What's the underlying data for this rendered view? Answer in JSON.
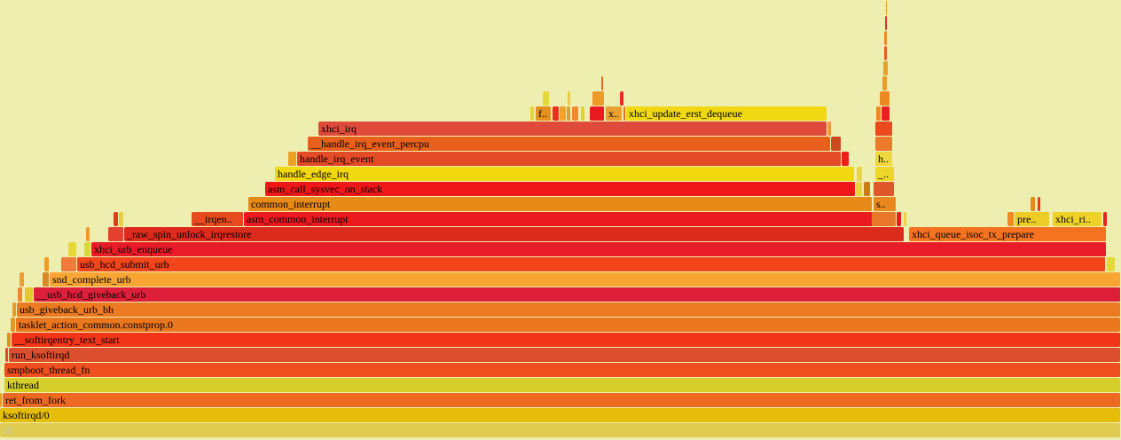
{
  "flamegraph": {
    "colors": {
      "background": "#eeeeb0",
      "all": "#e0cc50",
      "yellow": "#f0d90a",
      "orange": "#f07020",
      "red": "#e8281e"
    },
    "frames": [
      {
        "label": "all",
        "color": "#e0cc50",
        "depth": 0,
        "start": 0,
        "width": 1264,
        "dim": true
      },
      {
        "label": "ksoftirqd/0",
        "color": "#e5bd0a",
        "depth": 1,
        "start": 0,
        "width": 1264
      },
      {
        "label": "ret_from_fork",
        "color": "#ee6a22",
        "depth": 2,
        "start": 3,
        "width": 1261
      },
      {
        "label": "",
        "color": "#e89a1c",
        "depth": 2,
        "start": 0,
        "width": 3
      },
      {
        "label": "kthread",
        "color": "#d4cd2a",
        "depth": 3,
        "start": 5,
        "width": 1259
      },
      {
        "label": "smpboot_thread_fn",
        "color": "#f05020",
        "depth": 4,
        "start": 5,
        "width": 1259
      },
      {
        "label": "run_ksoftirqd",
        "color": "#dc4f2e",
        "depth": 5,
        "start": 10,
        "width": 1254
      },
      {
        "label": "",
        "color": "#e34a2a",
        "depth": 5,
        "start": 6,
        "width": 4
      },
      {
        "label": "__softirqentry_text_start",
        "color": "#f23418",
        "depth": 6,
        "start": 13,
        "width": 1251
      },
      {
        "label": "",
        "color": "#e38c24",
        "depth": 6,
        "start": 8,
        "width": 5
      },
      {
        "label": "tasklet_action_common.constprop.0",
        "color": "#ea761e",
        "depth": 7,
        "start": 18,
        "width": 1246
      },
      {
        "label": "",
        "color": "#e69628",
        "depth": 7,
        "start": 12,
        "width": 6
      },
      {
        "label": "usb_giveback_urb_bh",
        "color": "#ec7a22",
        "depth": 8,
        "start": 19,
        "width": 1245
      },
      {
        "label": "",
        "color": "#e79a30",
        "depth": 8,
        "start": 14,
        "width": 5
      },
      {
        "label": "__usb_hcd_giveback_urb",
        "color": "#de1f3a",
        "depth": 9,
        "start": 38,
        "width": 1226
      },
      {
        "label": "",
        "color": "#e3c830",
        "depth": 9,
        "start": 28,
        "width": 10
      },
      {
        "label": "",
        "color": "#ee8530",
        "depth": 9,
        "start": 20,
        "width": 6
      },
      {
        "label": "snd_complete_urb",
        "color": "#f8a534",
        "depth": 10,
        "start": 56,
        "width": 1208
      },
      {
        "label": "",
        "color": "#d88a28",
        "depth": 10,
        "start": 48,
        "width": 8
      },
      {
        "label": "",
        "color": "#ec9d34",
        "depth": 10,
        "start": 22,
        "width": 6
      },
      {
        "label": "usb_hcd_submit_urb",
        "color": "#f2451c",
        "depth": 11,
        "start": 87,
        "width": 1160
      },
      {
        "label": "",
        "color": "#ef7a3a",
        "depth": 11,
        "start": 69,
        "width": 18
      },
      {
        "label": "",
        "color": "#ee9a24",
        "depth": 11,
        "start": 50,
        "width": 6
      },
      {
        "label": "",
        "color": "#e6d838",
        "depth": 11,
        "start": 1248,
        "width": 10
      },
      {
        "label": "xhci_urb_enqueue",
        "color": "#e81c28",
        "depth": 12,
        "start": 103,
        "width": 1145
      },
      {
        "label": "",
        "color": "#d8d838",
        "depth": 12,
        "start": 95,
        "width": 8
      },
      {
        "label": "",
        "color": "#e6d838",
        "depth": 12,
        "start": 77,
        "width": 10
      },
      {
        "label": "_raw_spin_unlock_irqrestore",
        "color": "#dc2a1c",
        "depth": 13,
        "start": 140,
        "width": 880
      },
      {
        "label": "xhci_queue_isoc_tx_prepare",
        "color": "#f47220",
        "depth": 13,
        "start": 1025,
        "width": 223
      },
      {
        "label": "",
        "color": "#e3402e",
        "depth": 13,
        "start": 122,
        "width": 18
      },
      {
        "label": "",
        "color": "#f09a2a",
        "depth": 13,
        "start": 97,
        "width": 5
      },
      {
        "label": "asm_common_interrupt",
        "color": "#ea1a20",
        "depth": 14,
        "start": 275,
        "width": 710
      },
      {
        "label": "__irqen..",
        "color": "#e64a1e",
        "depth": 14,
        "start": 216,
        "width": 59
      },
      {
        "label": "",
        "color": "#e8772a",
        "depth": 14,
        "start": 983,
        "width": 28
      },
      {
        "label": "",
        "color": "#e81c1c",
        "depth": 14,
        "start": 1011,
        "width": 6
      },
      {
        "label": "",
        "color": "#eed040",
        "depth": 14,
        "start": 1019,
        "width": 4
      },
      {
        "label": "",
        "color": "#d8401e",
        "depth": 14,
        "start": 128,
        "width": 6
      },
      {
        "label": "",
        "color": "#e6d040",
        "depth": 14,
        "start": 134,
        "width": 6
      },
      {
        "label": "pre..",
        "color": "#eecc28",
        "depth": 14,
        "start": 1144,
        "width": 40
      },
      {
        "label": "",
        "color": "#ee8a1e",
        "depth": 14,
        "start": 1136,
        "width": 8
      },
      {
        "label": "xhci_ri..",
        "color": "#eed228",
        "depth": 14,
        "start": 1187,
        "width": 56
      },
      {
        "label": "",
        "color": "#e8241e",
        "depth": 14,
        "start": 1244,
        "width": 5
      },
      {
        "label": "common_interrupt",
        "color": "#e68a18",
        "depth": 15,
        "start": 280,
        "width": 704
      },
      {
        "label": "s..",
        "color": "#e8881e",
        "depth": 15,
        "start": 985,
        "width": 26
      },
      {
        "label": "",
        "color": "#e68a1e",
        "depth": 15,
        "start": 1162,
        "width": 6
      },
      {
        "label": "",
        "color": "#e03c1e",
        "depth": 15,
        "start": 1170,
        "width": 4
      },
      {
        "label": "asm_call_sysvec_on_stack",
        "color": "#ee1818",
        "depth": 16,
        "start": 299,
        "width": 666
      },
      {
        "label": "",
        "color": "#e6d83a",
        "depth": 16,
        "start": 965,
        "width": 8
      },
      {
        "label": "",
        "color": "#cc7a1a",
        "depth": 16,
        "start": 974,
        "width": 8
      },
      {
        "label": "",
        "color": "#e0582a",
        "depth": 16,
        "start": 985,
        "width": 24
      },
      {
        "label": "handle_edge_irq",
        "color": "#f2d80e",
        "depth": 17,
        "start": 310,
        "width": 654
      },
      {
        "label": "",
        "color": "#e6d83a",
        "depth": 17,
        "start": 966,
        "width": 7
      },
      {
        "label": "_..",
        "color": "#efd62a",
        "depth": 17,
        "start": 987,
        "width": 22
      },
      {
        "label": "handle_irq_event",
        "color": "#e44a26",
        "depth": 18,
        "start": 335,
        "width": 614
      },
      {
        "label": "",
        "color": "#eca024",
        "depth": 18,
        "start": 325,
        "width": 10
      },
      {
        "label": "",
        "color": "#ee2018",
        "depth": 18,
        "start": 949,
        "width": 9
      },
      {
        "label": "h..",
        "color": "#eed63e",
        "depth": 18,
        "start": 987,
        "width": 20
      },
      {
        "label": "__handle_irq_event_percpu",
        "color": "#e8601c",
        "depth": 19,
        "start": 347,
        "width": 590
      },
      {
        "label": "",
        "color": "#cc4a1e",
        "depth": 19,
        "start": 937,
        "width": 12
      },
      {
        "label": "",
        "color": "#ec7a2a",
        "depth": 19,
        "start": 987,
        "width": 20
      },
      {
        "label": "xhci_irq",
        "color": "#e04a3a",
        "depth": 20,
        "start": 359,
        "width": 574
      },
      {
        "label": "",
        "color": "#ec4a1e",
        "depth": 20,
        "start": 987,
        "width": 20
      },
      {
        "label": "",
        "color": "#ee9a3a",
        "depth": 20,
        "start": 933,
        "width": 5
      },
      {
        "label": "f..",
        "color": "#e4901e",
        "depth": 21,
        "start": 604,
        "width": 18
      },
      {
        "label": "",
        "color": "#e3d63a",
        "depth": 21,
        "start": 598,
        "width": 5
      },
      {
        "label": "",
        "color": "#e83020",
        "depth": 21,
        "start": 623,
        "width": 8
      },
      {
        "label": "",
        "color": "#f0a230",
        "depth": 21,
        "start": 631,
        "width": 8
      },
      {
        "label": "",
        "color": "#d8a038",
        "depth": 21,
        "start": 639,
        "width": 5
      },
      {
        "label": "",
        "color": "#f08a2a",
        "depth": 21,
        "start": 645,
        "width": 8
      },
      {
        "label": "",
        "color": "#e3d02a",
        "depth": 21,
        "start": 655,
        "width": 5
      },
      {
        "label": "",
        "color": "#e81c20",
        "depth": 21,
        "start": 665,
        "width": 17
      },
      {
        "label": "x..",
        "color": "#e8a030",
        "depth": 21,
        "start": 683,
        "width": 19
      },
      {
        "label": "",
        "color": "#ec7020",
        "depth": 21,
        "start": 703,
        "width": 3
      },
      {
        "label": "xhci_update_erst_dequeue",
        "color": "#f0d812",
        "depth": 21,
        "start": 706,
        "width": 227
      },
      {
        "label": "",
        "color": "#ec8a1e",
        "depth": 21,
        "start": 988,
        "width": 6
      },
      {
        "label": "",
        "color": "#e82020",
        "depth": 21,
        "start": 994,
        "width": 10
      },
      {
        "label": "",
        "color": "#e6d83a",
        "depth": 22,
        "start": 612,
        "width": 8
      },
      {
        "label": "",
        "color": "#e8d03a",
        "depth": 22,
        "start": 640,
        "width": 4
      },
      {
        "label": "",
        "color": "#ee9a2a",
        "depth": 22,
        "start": 668,
        "width": 14
      },
      {
        "label": "",
        "color": "#e82e20",
        "depth": 22,
        "start": 699,
        "width": 5
      },
      {
        "label": "",
        "color": "#ec8a20",
        "depth": 22,
        "start": 992,
        "width": 12
      },
      {
        "label": "",
        "color": "#ee9a2a",
        "depth": 23,
        "start": 995,
        "width": 6
      },
      {
        "label": "",
        "color": "#ec6a20",
        "depth": 23,
        "start": 678,
        "width": 3
      },
      {
        "label": "",
        "color": "#e8a030",
        "depth": 24,
        "start": 996,
        "width": 6
      },
      {
        "label": "",
        "color": "#ec5a20",
        "depth": 25,
        "start": 997,
        "width": 4
      },
      {
        "label": "",
        "color": "#ee8a2a",
        "depth": 26,
        "start": 997,
        "width": 4
      },
      {
        "label": "",
        "color": "#e82e20",
        "depth": 27,
        "start": 998,
        "width": 3
      },
      {
        "label": "",
        "color": "#ee9a2a",
        "depth": 28,
        "start": 999,
        "width": 2
      }
    ]
  }
}
